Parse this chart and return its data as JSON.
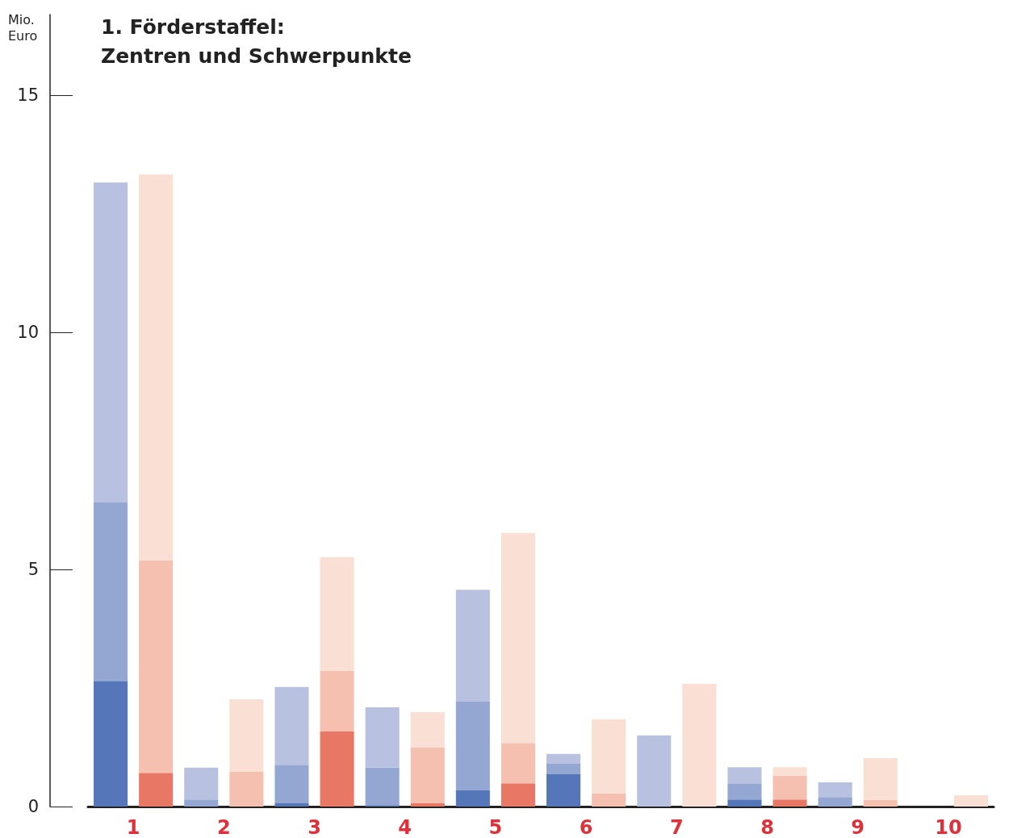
{
  "chart_data": {
    "type": "bar",
    "title": "1. Förderstaffel:\nZentren und Schwerpunkte",
    "ylabel": "Mio.\nEuro",
    "categories": [
      "1",
      null,
      "2",
      null,
      "3",
      null,
      "4",
      null,
      "5",
      null,
      "6",
      null,
      "7",
      null,
      "8",
      null,
      "9",
      null,
      "10",
      null
    ],
    "stacked": true,
    "ylim": [
      0,
      16.7
    ],
    "yticks": [
      0,
      5,
      10,
      15
    ],
    "grid": false,
    "series": [
      {
        "colors": [
          "#5576b8",
          "#e97766",
          "#5576b8",
          "#e97766",
          "#5576b8",
          "#e97766",
          "#5576b8",
          "#e97766",
          "#5576b8",
          "#e97766",
          "#5576b8",
          "#e97766",
          "#5576b8",
          "#e97766",
          "#5576b8",
          "#e97766",
          "#5576b8",
          "#e97766",
          "#5576b8",
          "#e97766"
        ],
        "values": [
          2.65,
          0.71,
          0,
          0,
          0.07,
          1.58,
          0.03,
          0.07,
          0.34,
          0.49,
          0.68,
          0,
          0,
          0,
          0.15,
          0.15,
          0,
          0,
          0,
          0
        ]
      },
      {
        "colors": [
          "#94a7d2",
          "#f5c0b0",
          "#94a7d2",
          "#f5c0b0",
          "#94a7d2",
          "#f5c0b0",
          "#94a7d2",
          "#f5c0b0",
          "#94a7d2",
          "#f5c0b0",
          "#94a7d2",
          "#f5c0b0",
          "#94a7d2",
          "#f5c0b0",
          "#94a7d2",
          "#f5c0b0",
          "#94a7d2",
          "#f5c0b0",
          "#94a7d2",
          "#f5c0b0"
        ],
        "values": [
          3.76,
          4.48,
          0.15,
          0.73,
          0.81,
          1.28,
          0.79,
          1.17,
          1.87,
          0.85,
          0.22,
          0.27,
          0,
          0,
          0.34,
          0.5,
          0.2,
          0.14,
          0,
          0
        ]
      },
      {
        "colors": [
          "#b8c2e0",
          "#fadfd5",
          "#b8c2e0",
          "#fadfd5",
          "#b8c2e0",
          "#fadfd5",
          "#b8c2e0",
          "#fadfd5",
          "#b8c2e0",
          "#fadfd5",
          "#b8c2e0",
          "#fadfd5",
          "#b8c2e0",
          "#fadfd5",
          "#b8c2e0",
          "#fadfd5",
          "#b8c2e0",
          "#fadfd5",
          "#b8c2e0",
          "#fadfd5"
        ],
        "values": [
          6.75,
          8.14,
          0.67,
          1.53,
          1.64,
          2.4,
          1.27,
          0.75,
          2.36,
          4.43,
          0.21,
          1.57,
          1.5,
          2.59,
          0.34,
          0.18,
          0.31,
          0.88,
          0,
          0.24
        ]
      }
    ]
  }
}
